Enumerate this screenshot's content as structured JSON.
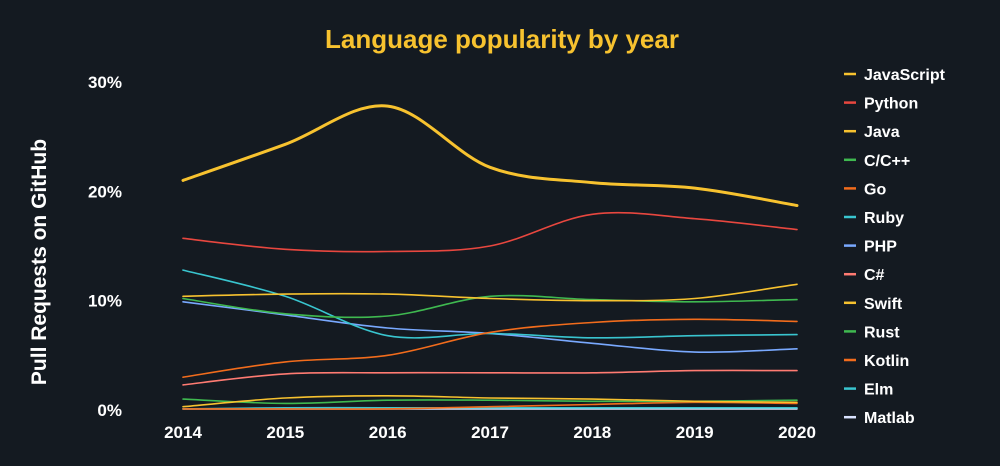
{
  "chart_data": {
    "type": "line",
    "title": "Language popularity by year",
    "xlabel": "",
    "ylabel": "Pull Requests on GitHub",
    "x": [
      2014,
      2015,
      2016,
      2017,
      2018,
      2019,
      2020
    ],
    "ylim": [
      0,
      30
    ],
    "yticks": [
      {
        "value": 0,
        "label": "0%"
      },
      {
        "value": 10,
        "label": "10%"
      },
      {
        "value": 20,
        "label": "20%"
      },
      {
        "value": 30,
        "label": "30%"
      }
    ],
    "legend_position": "right",
    "series": [
      {
        "name": "JavaScript",
        "color": "#f7c22f",
        "values": [
          21.0,
          24.3,
          27.8,
          22.2,
          20.8,
          20.3,
          18.7
        ]
      },
      {
        "name": "Python",
        "color": "#e8473f",
        "values": [
          15.7,
          14.7,
          14.5,
          15.0,
          17.9,
          17.5,
          16.5
        ]
      },
      {
        "name": "Java",
        "color": "#f7c22f",
        "values": [
          10.4,
          10.6,
          10.6,
          10.2,
          10.0,
          10.2,
          11.5
        ]
      },
      {
        "name": "C/C++",
        "color": "#3fb950",
        "values": [
          10.2,
          8.8,
          8.6,
          10.4,
          10.1,
          9.9,
          10.1
        ]
      },
      {
        "name": "Go",
        "color": "#f26c1c",
        "values": [
          3.0,
          4.4,
          5.0,
          7.1,
          8.0,
          8.3,
          8.1
        ]
      },
      {
        "name": "Ruby",
        "color": "#39c5cf",
        "values": [
          12.8,
          10.4,
          6.8,
          7.0,
          6.6,
          6.8,
          6.9
        ]
      },
      {
        "name": "PHP",
        "color": "#79a9ff",
        "values": [
          9.9,
          8.7,
          7.5,
          7.0,
          6.1,
          5.3,
          5.6
        ]
      },
      {
        "name": "C#",
        "color": "#ff7b72",
        "values": [
          2.3,
          3.3,
          3.4,
          3.4,
          3.4,
          3.6,
          3.6
        ]
      },
      {
        "name": "Swift",
        "color": "#f7c22f",
        "values": [
          0.3,
          1.1,
          1.3,
          1.1,
          1.0,
          0.8,
          0.7
        ]
      },
      {
        "name": "Rust",
        "color": "#3fb950",
        "values": [
          1.0,
          0.6,
          0.9,
          0.9,
          0.8,
          0.8,
          0.9
        ]
      },
      {
        "name": "Kotlin",
        "color": "#f26c1c",
        "values": [
          0.1,
          0.1,
          0.1,
          0.3,
          0.5,
          0.7,
          0.6
        ]
      },
      {
        "name": "Elm",
        "color": "#39c5cf",
        "values": [
          0.1,
          0.2,
          0.2,
          0.2,
          0.2,
          0.2,
          0.2
        ]
      },
      {
        "name": "Matlab",
        "color": "#d9e2ff",
        "values": [
          0.1,
          0.1,
          0.1,
          0.1,
          0.1,
          0.1,
          0.1
        ]
      }
    ]
  },
  "colors": {
    "background": "#141a21",
    "title": "#f7c22f",
    "text": "#ffffff"
  }
}
